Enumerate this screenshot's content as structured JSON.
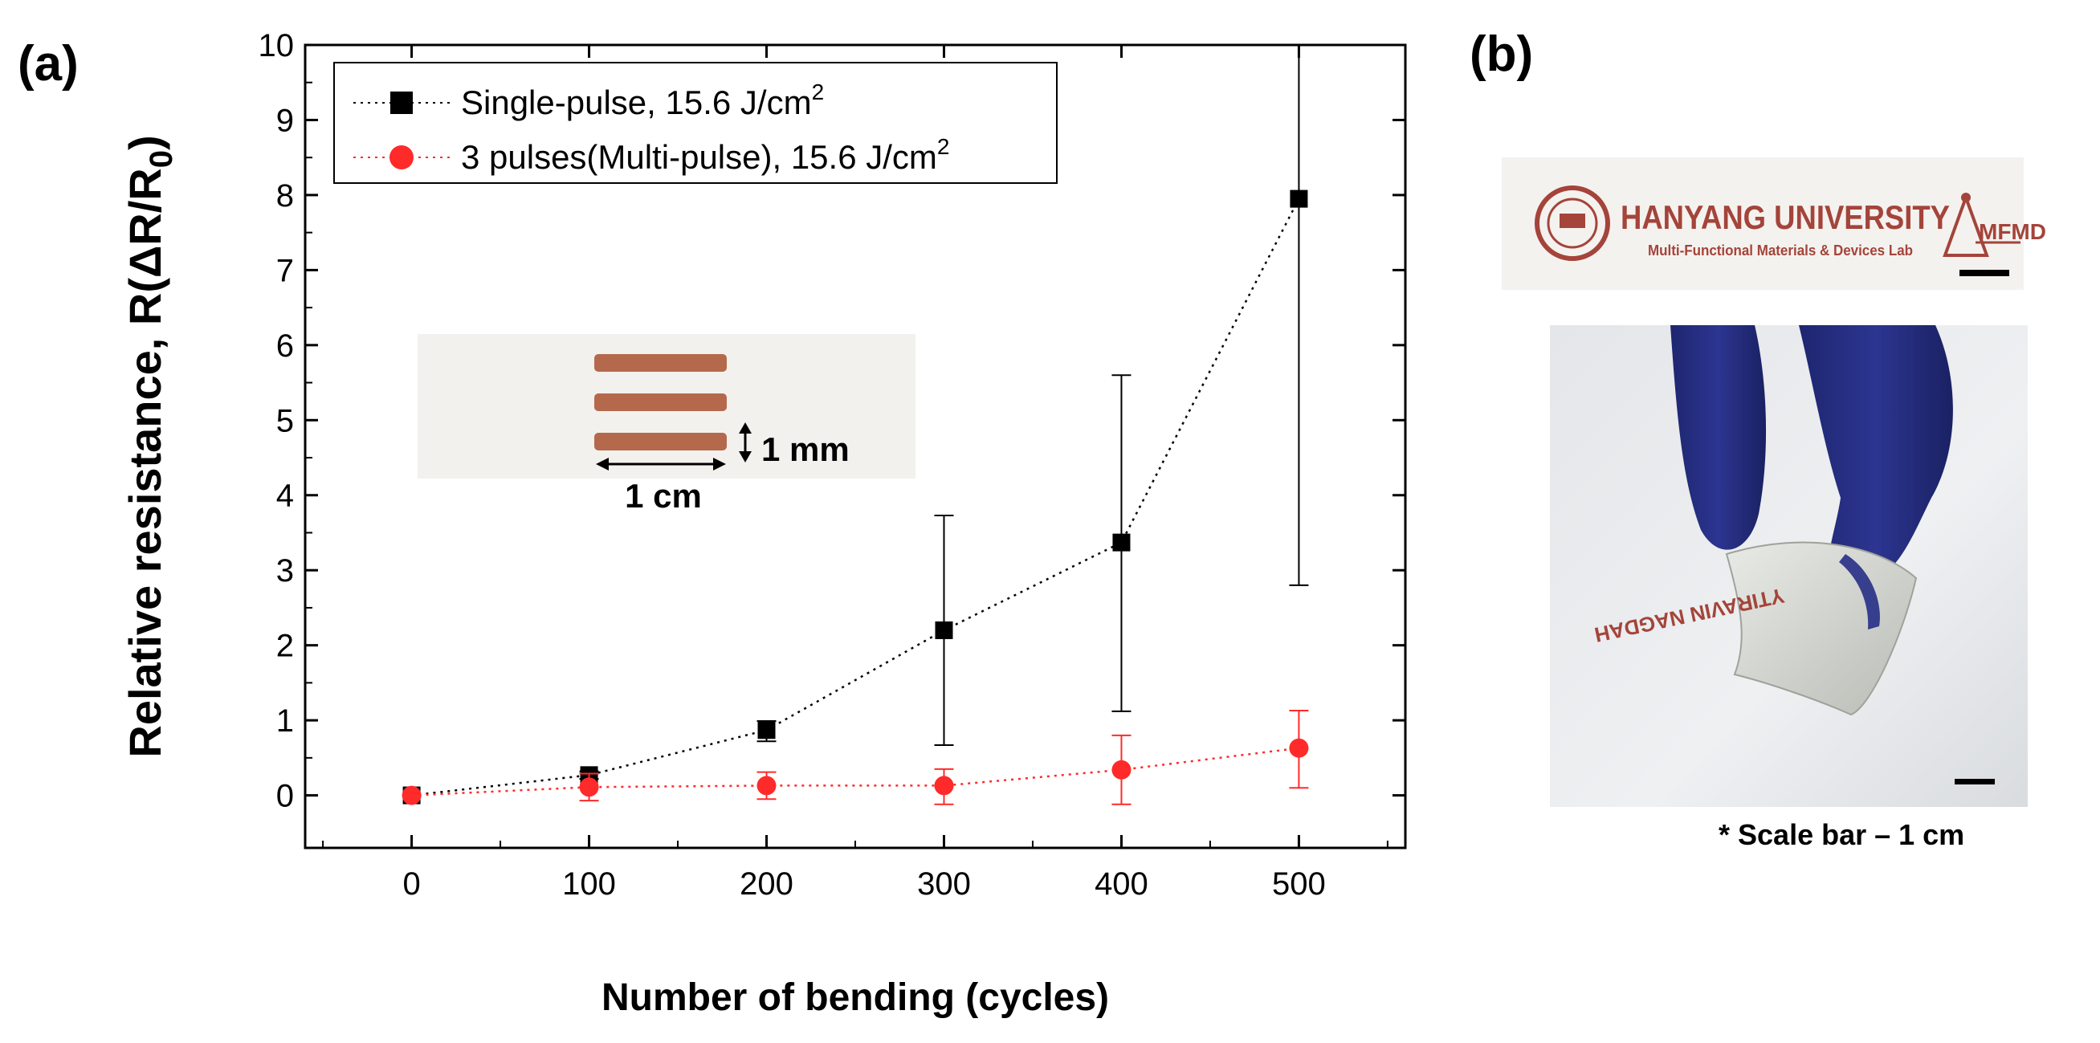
{
  "panel_a_label": "(a)",
  "panel_b_label": "(b)",
  "chart_data": {
    "type": "scatter",
    "xlabel": "Number of bending (cycles)",
    "ylabel": "Relative resistance, R(ΔR/R",
    "ylabel_sub": "0",
    "ylabel_end": ")",
    "xlim": [
      -60,
      560
    ],
    "ylim": [
      -0.7,
      10
    ],
    "xticks": [
      0,
      100,
      200,
      300,
      400,
      500
    ],
    "yticks": [
      0,
      1,
      2,
      3,
      4,
      5,
      6,
      7,
      8,
      9,
      10
    ],
    "grid": false,
    "legend_position": "top-left",
    "series": [
      {
        "name": "Single-pulse, 15.6 J/cm",
        "name_sup": "2",
        "color": "#000000",
        "marker": "square",
        "line": "dotted",
        "x": [
          0,
          100,
          200,
          300,
          400,
          500
        ],
        "y": [
          0.0,
          0.27,
          0.87,
          2.2,
          3.37,
          7.95
        ],
        "err_low": [
          0.0,
          0.05,
          0.15,
          1.53,
          2.25,
          5.15
        ],
        "err_high": [
          0.0,
          0.05,
          0.12,
          1.53,
          2.23,
          2.2
        ]
      },
      {
        "name": "3 pulses(Multi-pulse), 15.6 J/cm",
        "name_sup": "2",
        "color": "#ff2a2a",
        "marker": "circle",
        "line": "dotted",
        "x": [
          0,
          100,
          200,
          300,
          400,
          500
        ],
        "y": [
          0.0,
          0.11,
          0.13,
          0.13,
          0.34,
          0.63
        ],
        "err_low": [
          0.0,
          0.18,
          0.18,
          0.25,
          0.46,
          0.53
        ],
        "err_high": [
          0.0,
          0.18,
          0.18,
          0.22,
          0.46,
          0.5
        ]
      }
    ]
  },
  "inset": {
    "height_label": "1 mm",
    "width_label": "1 cm",
    "pattern_color": "#b5694c"
  },
  "photo": {
    "logo_name": "HANYANG UNIVERSITY",
    "logo_sub": "Multi-Functional Materials & Devices Lab",
    "logo_badge": "MFMD",
    "logo_color": "#a4443a",
    "glove_color": "#262f86",
    "caption": "* Scale bar – 1 cm"
  }
}
